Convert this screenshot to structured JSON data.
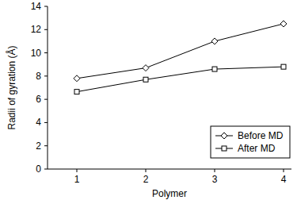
{
  "chart_data": {
    "type": "line",
    "x_label": "Polymer",
    "y_label": "Radii of gyration (Å)",
    "categories": [
      "1",
      "2",
      "3",
      "4"
    ],
    "series": [
      {
        "name": "Before MD",
        "color": "#000000",
        "marker": "diamond",
        "values": [
          7.8,
          8.7,
          11.0,
          12.5
        ]
      },
      {
        "name": "After MD",
        "color": "#000000",
        "marker": "square",
        "values": [
          6.65,
          7.7,
          8.6,
          8.8
        ]
      }
    ],
    "ylim": [
      0,
      14
    ],
    "yticks": [
      0,
      2,
      4,
      6,
      8,
      10,
      12,
      14
    ],
    "grid": false,
    "legend": "bottom-right"
  }
}
